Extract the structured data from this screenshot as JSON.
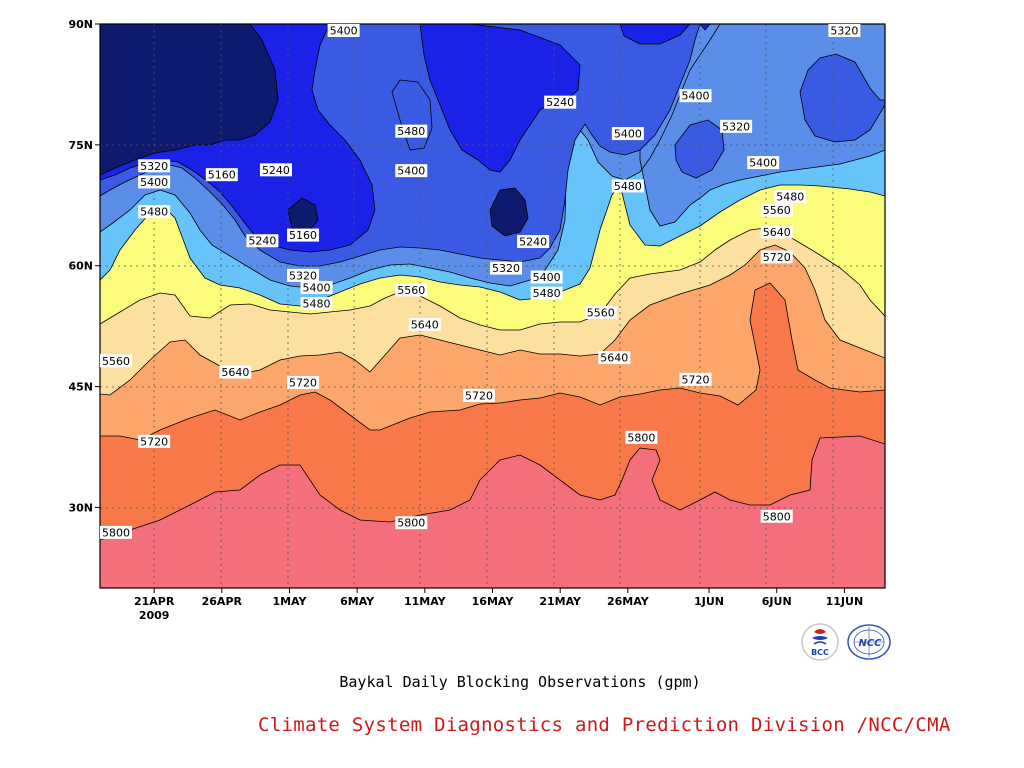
{
  "chart_data": {
    "type": "heatmap",
    "title": "Baykal Daily Blocking Observations (gpm)",
    "xlabel": "",
    "ylabel": "",
    "x_ticks": [
      "21APR",
      "26APR",
      "1MAY",
      "6MAY",
      "11MAY",
      "16MAY",
      "21MAY",
      "26MAY",
      "1JUN",
      "6JUN",
      "11JUN"
    ],
    "x_year_label": "2009",
    "x_range": [
      "2009-04-17",
      "2009-06-14"
    ],
    "y_ticks": [
      "30N",
      "45N",
      "60N",
      "75N",
      "90N"
    ],
    "y_tick_values": [
      30,
      45,
      60,
      75,
      90
    ],
    "ylim": [
      20,
      90
    ],
    "grid": true,
    "contour_levels": [
      5160,
      5240,
      5320,
      5400,
      5480,
      5560,
      5640,
      5720,
      5800
    ],
    "band_colors": [
      "#0e1a6e",
      "#1a22e8",
      "#3a5ae4",
      "#5a8ee8",
      "#66c4fa",
      "#fcfc7c",
      "#fde0a0",
      "#fca66c",
      "#f8784a",
      "#f46f7c"
    ],
    "contour_labels": [
      {
        "value": "5400",
        "date": "2009-05-05",
        "lat": 89.5
      },
      {
        "value": "5320",
        "date": "2009-06-11",
        "lat": 89.5
      },
      {
        "value": "5240",
        "date": "2009-05-21",
        "lat": 80.3
      },
      {
        "value": "5400",
        "date": "2009-05-31",
        "lat": 81.1
      },
      {
        "value": "5480",
        "date": "2009-05-10",
        "lat": 76.7
      },
      {
        "value": "5320",
        "date": "2009-06-03",
        "lat": 77.3
      },
      {
        "value": "5400",
        "date": "2009-05-26",
        "lat": 76.4
      },
      {
        "value": "5320",
        "date": "2009-04-21",
        "lat": 72.4
      },
      {
        "value": "5240",
        "date": "2009-04-30",
        "lat": 71.9
      },
      {
        "value": "5160",
        "date": "2009-04-26",
        "lat": 71.3
      },
      {
        "value": "5400",
        "date": "2009-05-10",
        "lat": 71.8
      },
      {
        "value": "5400",
        "date": "2009-06-05",
        "lat": 72.8
      },
      {
        "value": "5400",
        "date": "2009-04-21",
        "lat": 70.4
      },
      {
        "value": "5480",
        "date": "2009-05-26",
        "lat": 69.9
      },
      {
        "value": "5480",
        "date": "2009-06-07",
        "lat": 68.6
      },
      {
        "value": "5480",
        "date": "2009-04-21",
        "lat": 66.7
      },
      {
        "value": "5560",
        "date": "2009-06-06",
        "lat": 66.9
      },
      {
        "value": "5160",
        "date": "2009-05-02",
        "lat": 63.8
      },
      {
        "value": "5240",
        "date": "2009-04-29",
        "lat": 63.1
      },
      {
        "value": "5240",
        "date": "2009-05-19",
        "lat": 63.0
      },
      {
        "value": "5640",
        "date": "2009-06-06",
        "lat": 64.2
      },
      {
        "value": "5720",
        "date": "2009-06-06",
        "lat": 61.1
      },
      {
        "value": "5320",
        "date": "2009-05-02",
        "lat": 58.8
      },
      {
        "value": "5320",
        "date": "2009-05-17",
        "lat": 59.7
      },
      {
        "value": "5400",
        "date": "2009-05-03",
        "lat": 57.3
      },
      {
        "value": "5400",
        "date": "2009-05-20",
        "lat": 58.6
      },
      {
        "value": "5480",
        "date": "2009-05-03",
        "lat": 55.3
      },
      {
        "value": "5480",
        "date": "2009-05-20",
        "lat": 56.6
      },
      {
        "value": "5560",
        "date": "2009-05-10",
        "lat": 57.0
      },
      {
        "value": "5560",
        "date": "2009-05-24",
        "lat": 54.2
      },
      {
        "value": "5640",
        "date": "2009-05-11",
        "lat": 52.7
      },
      {
        "value": "5560",
        "date": "2009-04-17",
        "lat": 48.2
      },
      {
        "value": "5640",
        "date": "2009-05-25",
        "lat": 48.6
      },
      {
        "value": "5640",
        "date": "2009-04-27",
        "lat": 46.8
      },
      {
        "value": "5720",
        "date": "2009-05-02",
        "lat": 45.5
      },
      {
        "value": "5720",
        "date": "2009-05-31",
        "lat": 45.9
      },
      {
        "value": "5720",
        "date": "2009-05-15",
        "lat": 43.9
      },
      {
        "value": "5720",
        "date": "2009-04-21",
        "lat": 38.2
      },
      {
        "value": "5800",
        "date": "2009-05-27",
        "lat": 38.7
      },
      {
        "value": "5800",
        "date": "2009-06-06",
        "lat": 28.9
      },
      {
        "value": "5800",
        "date": "2009-05-10",
        "lat": 28.1
      },
      {
        "value": "5800",
        "date": "2009-04-17",
        "lat": 26.9
      }
    ]
  },
  "caption": "Baykal Daily Blocking Observations (gpm)",
  "credit": "Climate System Diagnostics and Prediction Division /NCC/CMA",
  "logos": {
    "bcc": {
      "text": "BCC",
      "icon": "bcc-logo-icon"
    },
    "ncc": {
      "text": "NCC",
      "icon": "ncc-logo-icon"
    }
  }
}
